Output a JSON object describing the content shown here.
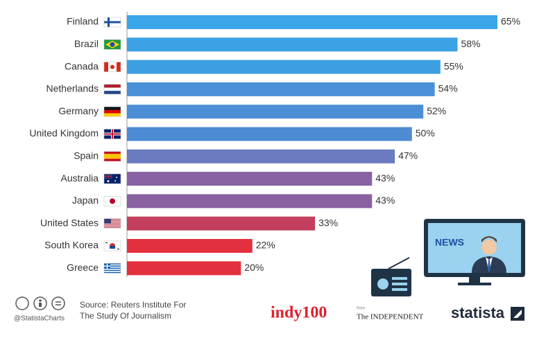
{
  "chart_data": {
    "type": "bar",
    "categories": [
      "Finland",
      "Brazil",
      "Canada",
      "Netherlands",
      "Germany",
      "United Kingdom",
      "Spain",
      "Australia",
      "Japan",
      "United States",
      "South Korea",
      "Greece"
    ],
    "values": [
      65,
      58,
      55,
      54,
      52,
      50,
      47,
      43,
      43,
      33,
      22,
      20
    ],
    "value_labels": [
      "65%",
      "58%",
      "55%",
      "54%",
      "52%",
      "50%",
      "47%",
      "43%",
      "43%",
      "33%",
      "22%",
      "20%"
    ],
    "colors": [
      "#3aa5e8",
      "#3ba2e5",
      "#3d9fe2",
      "#4a90d8",
      "#4b8ed5",
      "#4d8bd2",
      "#6a7bc0",
      "#8862a2",
      "#8a60a0",
      "#c23f5e",
      "#e3303e",
      "#e3303e"
    ]
  },
  "footer": {
    "handle": "@StatistaCharts",
    "source": [
      "Source: Reuters Institute For",
      "The Study Of Journalism"
    ],
    "indy": "indy100",
    "from": "from",
    "independent": "The INDEPENDENT",
    "statista": "statista",
    "news": "NEWS"
  }
}
